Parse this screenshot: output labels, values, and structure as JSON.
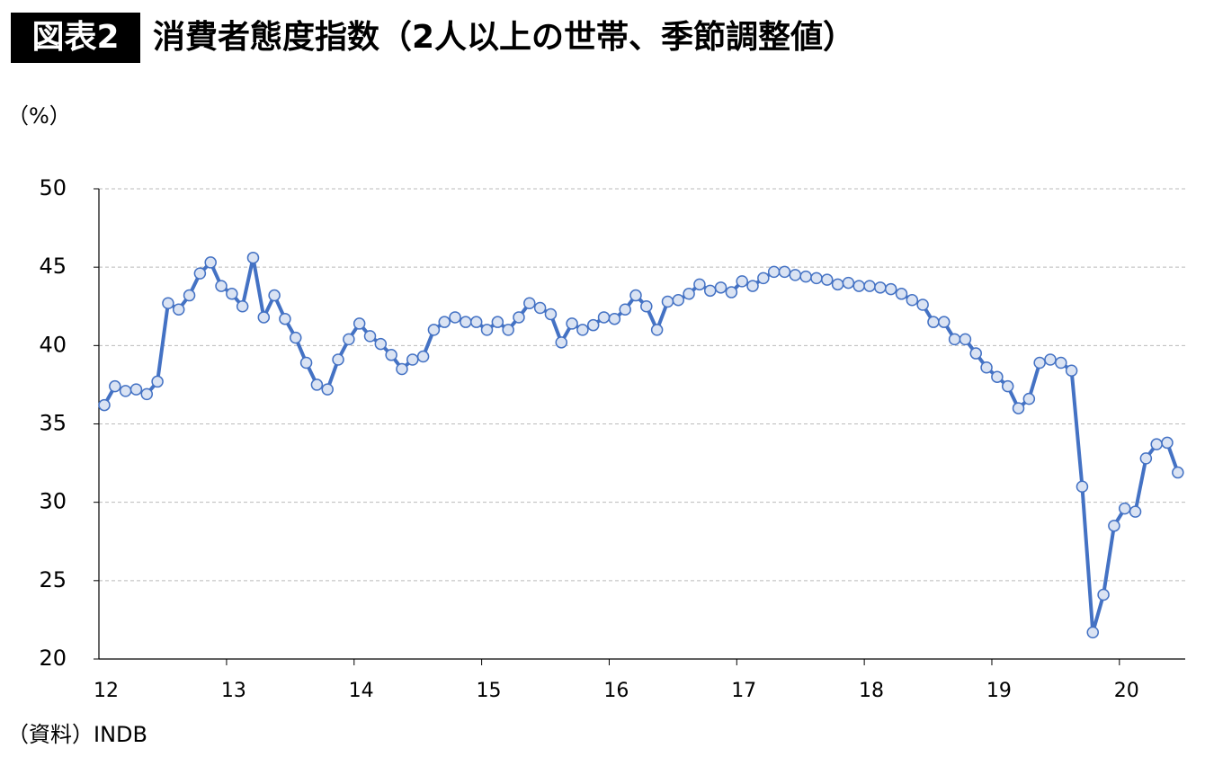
{
  "chart_data": {
    "type": "line",
    "badge": "図表2",
    "title": "消費者態度指数（2人以上の世帯、季節調整値）",
    "y_label": "（%）",
    "source": "（資料）INDB",
    "categories": [
      "12",
      null,
      null,
      null,
      null,
      null,
      null,
      null,
      null,
      null,
      null,
      null,
      "13",
      null,
      null,
      null,
      null,
      null,
      null,
      null,
      null,
      null,
      null,
      null,
      "14",
      null,
      null,
      null,
      null,
      null,
      null,
      null,
      null,
      null,
      null,
      null,
      "15",
      null,
      null,
      null,
      null,
      null,
      null,
      null,
      null,
      null,
      null,
      null,
      "16",
      null,
      null,
      null,
      null,
      null,
      null,
      null,
      null,
      null,
      null,
      null,
      "17",
      null,
      null,
      null,
      null,
      null,
      null,
      null,
      null,
      null,
      null,
      null,
      "18",
      null,
      null,
      null,
      null,
      null,
      null,
      null,
      null,
      null,
      null,
      null,
      "19",
      null,
      null,
      null,
      null,
      null,
      null,
      null,
      null,
      null,
      null,
      null,
      "20",
      null,
      null,
      null,
      null,
      null
    ],
    "values": [
      36.2,
      37.4,
      37.1,
      37.2,
      36.9,
      37.7,
      42.7,
      42.3,
      43.2,
      44.6,
      45.3,
      43.8,
      43.3,
      42.5,
      45.6,
      41.8,
      43.2,
      41.7,
      40.5,
      38.9,
      37.5,
      37.2,
      39.1,
      40.4,
      41.4,
      40.6,
      40.1,
      39.4,
      38.5,
      39.1,
      39.3,
      41.0,
      41.5,
      41.8,
      41.5,
      41.5,
      41.0,
      41.5,
      41.0,
      41.8,
      42.7,
      42.4,
      42.0,
      40.2,
      41.4,
      41.0,
      41.3,
      41.8,
      41.7,
      42.3,
      43.2,
      42.5,
      41.0,
      42.8,
      42.9,
      43.3,
      43.9,
      43.5,
      43.7,
      43.4,
      44.1,
      43.8,
      44.3,
      44.7,
      44.7,
      44.5,
      44.4,
      44.3,
      44.2,
      43.9,
      44.0,
      43.8,
      43.8,
      43.7,
      43.6,
      43.3,
      42.9,
      42.6,
      41.5,
      41.5,
      40.4,
      40.4,
      39.5,
      38.6,
      38.0,
      37.4,
      36.0,
      36.6,
      38.9,
      39.1,
      38.9,
      38.4,
      31.0,
      21.7,
      24.1,
      28.5,
      29.6,
      29.4,
      32.8,
      33.7,
      33.8,
      31.9
    ],
    "color": "#4472c4",
    "marker_fill": "#dae3f3",
    "ylim": [
      20,
      50
    ],
    "yticks": [
      20,
      25,
      30,
      35,
      40,
      45,
      50
    ],
    "grid": true
  }
}
